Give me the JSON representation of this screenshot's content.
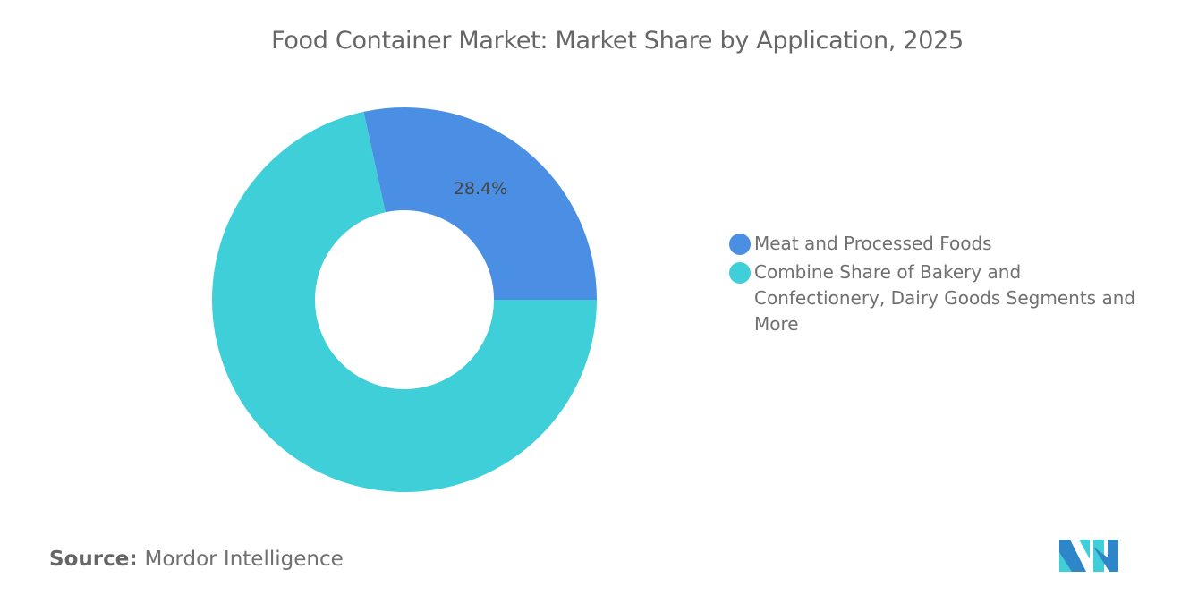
{
  "chart_data": {
    "type": "pie",
    "variant": "donut",
    "title": "Food Container Market: Market Share by Application, 2025",
    "slices": [
      {
        "label": "Meat and Processed Foods",
        "value": 28.4,
        "display": "28.4%",
        "color": "#4A8FE3"
      },
      {
        "label": "Combine Share of Bakery and Confectionery, Dairy Goods Segments and More",
        "value": 71.6,
        "display": "",
        "color": "#3FCFD9"
      }
    ],
    "legend_position": "right"
  },
  "source": {
    "label": "Source:",
    "value": "Mordor Intelligence"
  },
  "logo": {
    "text": "Mordor Intelligence"
  }
}
